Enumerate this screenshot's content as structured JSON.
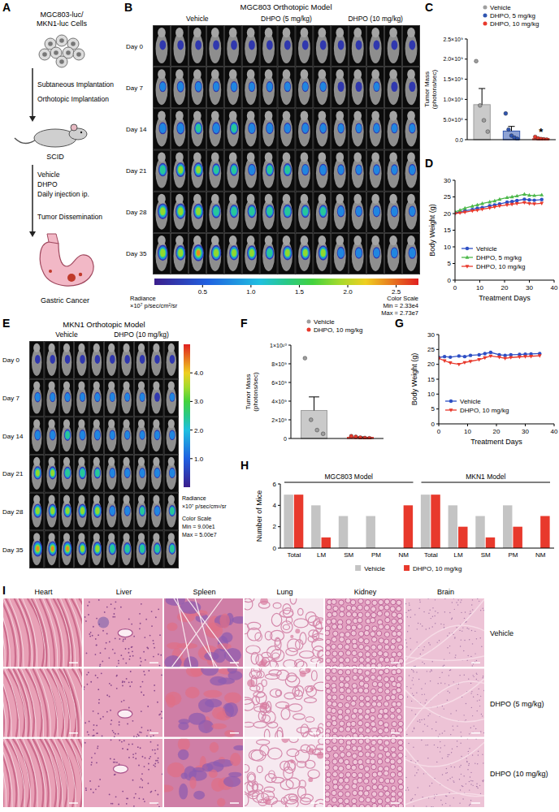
{
  "figure": {
    "panel_labels": [
      "A",
      "B",
      "C",
      "D",
      "E",
      "F",
      "G",
      "H",
      "I"
    ],
    "schematic": {
      "cell_lines": [
        "MGC803-luc/",
        "MKN1-luc Cells"
      ],
      "implantation": [
        "Subtaneous Implantation",
        "Orthotopic Implantation"
      ],
      "host": "SCID",
      "treatment": [
        "Vehicle",
        "DHPO",
        "Daily injection ip."
      ],
      "dissemination": "Tumor Dissemination",
      "result": "Gastric Cancer"
    },
    "imaging": [
      {
        "title": "MGC803 Orthotopic Model",
        "groups": [
          "Vehicle",
          "DHPO (5 mg/kg)",
          "DHPO (10 mg/kg)"
        ],
        "mice_per_group": 5,
        "days": [
          "Day 0",
          "Day 7",
          "Day 14",
          "Day 21",
          "Day 28",
          "Day 35"
        ],
        "colorbar": {
          "title": [
            "Radiance",
            "×10⁷ p/sec/cm²/sr"
          ],
          "range": [
            0.00233,
            2.73
          ],
          "ticks": [
            0.5,
            {
              "value": 1,
              "label": "1.0"
            },
            1.5,
            {
              "value": 2,
              "label": "2.0"
            },
            2.5
          ],
          "scale_title": "Color Scale",
          "min_label": "Min = 2.33e4",
          "max_label": "Max = 2.73e7"
        }
      },
      {
        "title": "MKN1 Orthotopic Model",
        "groups": [
          "Vehicle",
          "DHPO (10 mg/kg)"
        ],
        "mice_per_group": 5,
        "days": [
          "Day 0",
          "Day 7",
          "Day 14",
          "Day 21",
          "Day 28",
          "Day 35"
        ],
        "colorbar": {
          "title": [
            "Radiance",
            "×10⁷ p/sec/cm²/sr"
          ],
          "range": [
            9e-06,
            5
          ],
          "ticks": [
            {
              "value": 1,
              "label": "1.0"
            },
            {
              "value": 2,
              "label": "2.0"
            },
            {
              "value": 3,
              "label": "3.0"
            },
            {
              "value": 4,
              "label": "4.0"
            }
          ],
          "scale_title": "Color Scale",
          "min_label": "Min = 9.00e1",
          "max_label": "Max = 5.00e7"
        }
      }
    ],
    "histology": {
      "tissues": [
        "Heart",
        "Liver",
        "Spleen",
        "Lung",
        "Kidney",
        "Brain"
      ],
      "groups": [
        "Vehicle",
        "DHPO (5 mg/kg)",
        "DHPO (10 mg/kg)"
      ]
    }
  },
  "chart_data": [
    {
      "type": "bar",
      "y_label": [
        "Tumor Mass",
        "(photons/sec)"
      ],
      "categories": [
        "Vehicle",
        "DHPO, 5 mg/kg",
        "DHPO, 10 mg/kg"
      ],
      "values": [
        870000000,
        214000000,
        25200000
      ],
      "errors": [
        400000000,
        115000000,
        12000000
      ],
      "points": [
        [
          1950000000,
          850000000,
          480000000,
          200000000
        ],
        [
          650000000,
          250000000,
          100000000,
          50000000,
          20000000
        ],
        [
          70000000,
          30000000,
          15000000,
          8000000,
          3000000
        ]
      ],
      "colors": [
        "#9e9e9e",
        "#2f55b0",
        "#e8392c"
      ],
      "ylim": [
        0,
        2500000000
      ],
      "yticks": [
        {
          "value": 0,
          "label": "0.0"
        },
        {
          "value": 500000000,
          "label": "5.0×10⁸"
        },
        {
          "value": 1000000000,
          "label": "1.0×10⁹"
        },
        {
          "value": 1500000000,
          "label": "1.5×10⁹"
        },
        {
          "value": 2000000000,
          "label": "2.0×10⁹"
        },
        {
          "value": 2500000000,
          "label": "2.5×10⁹"
        }
      ],
      "legend": "top",
      "tick_labels": "y",
      "annotations": [
        {
          "text": "*",
          "category": "DHPO, 10 mg/kg"
        }
      ]
    },
    {
      "type": "line",
      "x_label": "Treatment Days",
      "y_label": [
        "Body Weight (g)"
      ],
      "x": [
        0,
        2,
        4,
        7,
        9,
        11,
        14,
        16,
        18,
        21,
        23,
        25,
        28,
        30,
        32,
        35
      ],
      "xlim": [
        0,
        40
      ],
      "xticks": [
        0,
        10,
        20,
        30,
        40
      ],
      "ylim": [
        0,
        30
      ],
      "yticks": [
        0,
        5,
        10,
        15,
        20,
        25,
        30
      ],
      "legend": "bottom-left",
      "series": [
        {
          "name": "Vehicle",
          "color": "#2e4fc4",
          "marker": "circle",
          "values": [
            20.2,
            20.5,
            20.8,
            21.2,
            21.6,
            21.8,
            22.3,
            22.6,
            22.9,
            23.4,
            23.6,
            23.9,
            24.3,
            24.1,
            24.0,
            24.2
          ]
        },
        {
          "name": "DHPO, 5 mg/kg",
          "color": "#4cb84a",
          "marker": "triangle-up",
          "values": [
            20.5,
            21.0,
            21.6,
            22.2,
            22.6,
            23.0,
            23.5,
            23.8,
            24.3,
            24.8,
            25.0,
            25.3,
            25.8,
            25.5,
            25.4,
            25.6
          ]
        },
        {
          "name": "DHPO, 10 mg/kg",
          "color": "#e8392c",
          "marker": "triangle-down",
          "values": [
            20.0,
            20.2,
            20.4,
            20.8,
            21.0,
            21.3,
            21.7,
            22.0,
            22.3,
            22.6,
            22.8,
            23.0,
            23.3,
            23.0,
            22.9,
            23.1
          ]
        }
      ]
    },
    {
      "type": "bar",
      "y_label": [
        "Tumor Mass",
        "(photons/sec)"
      ],
      "categories": [
        "Vehicle",
        "DHPO, 10 mg/kg"
      ],
      "values": [
        3000000000,
        124000000
      ],
      "errors": [
        1450000000,
        40000000
      ],
      "points": [
        [
          8600000000,
          2000000000,
          900000000,
          500000000
        ],
        [
          250000000,
          180000000,
          100000000,
          60000000,
          30000000
        ]
      ],
      "colors": [
        "#9e9e9e",
        "#e8392c"
      ],
      "ylim": [
        0,
        10000000000
      ],
      "yticks": [
        0,
        {
          "value": 2000000000,
          "label": "2×10⁹"
        },
        {
          "value": 4000000000,
          "label": "4×10⁹"
        },
        {
          "value": 6000000000,
          "label": "6×10⁹"
        },
        {
          "value": 8000000000,
          "label": "8×10⁹"
        },
        {
          "value": 10000000000,
          "label": "1×10¹⁰"
        }
      ],
      "legend": "top",
      "tick_labels": "y"
    },
    {
      "type": "line",
      "x_label": "Treatment Days",
      "y_label": [
        "Body Weight (g)"
      ],
      "x": [
        0,
        2,
        4,
        7,
        9,
        11,
        14,
        16,
        18,
        21,
        23,
        25,
        28,
        30,
        32,
        35
      ],
      "xlim": [
        0,
        40
      ],
      "xticks": [
        0,
        10,
        20,
        30,
        40
      ],
      "ylim": [
        0,
        30
      ],
      "yticks": [
        0,
        5,
        10,
        15,
        20,
        25,
        30
      ],
      "legend": "bottom-left",
      "series": [
        {
          "name": "Vehicle",
          "color": "#2e4fc4",
          "marker": "circle",
          "values": [
            22.3,
            22.6,
            22.4,
            22.8,
            22.6,
            23.0,
            23.2,
            23.6,
            24.0,
            23.2,
            23.0,
            23.2,
            23.3,
            23.4,
            23.5,
            23.6
          ]
        },
        {
          "name": "DHPO, 10 mg/kg",
          "color": "#e8392c",
          "marker": "triangle-down",
          "values": [
            22.0,
            21.2,
            20.5,
            20.0,
            20.6,
            21.0,
            21.6,
            22.2,
            22.8,
            22.4,
            22.0,
            22.3,
            22.5,
            22.6,
            22.7,
            22.9
          ]
        }
      ]
    },
    {
      "type": "bar",
      "y_label": [
        "Number of Mice"
      ],
      "groups": [
        "MGC803 Model",
        "MKN1 Model"
      ],
      "categories": [
        "Total",
        "LM",
        "SM",
        "PM",
        "NM",
        "Total",
        "LM",
        "SM",
        "PM",
        "NM"
      ],
      "ylim": [
        0,
        6
      ],
      "yticks": [
        0,
        2,
        4,
        6
      ],
      "legend": "bottom",
      "series": [
        {
          "name": "Vehicle",
          "color": "#c4c4c4",
          "values": [
            5,
            4,
            3,
            3,
            0,
            5,
            4,
            3,
            4,
            0
          ]
        },
        {
          "name": "DHPO, 10 mg/kg",
          "color": "#e8392c",
          "values": [
            5,
            1,
            0,
            0,
            4,
            5,
            2,
            1,
            2,
            3
          ]
        }
      ]
    }
  ]
}
